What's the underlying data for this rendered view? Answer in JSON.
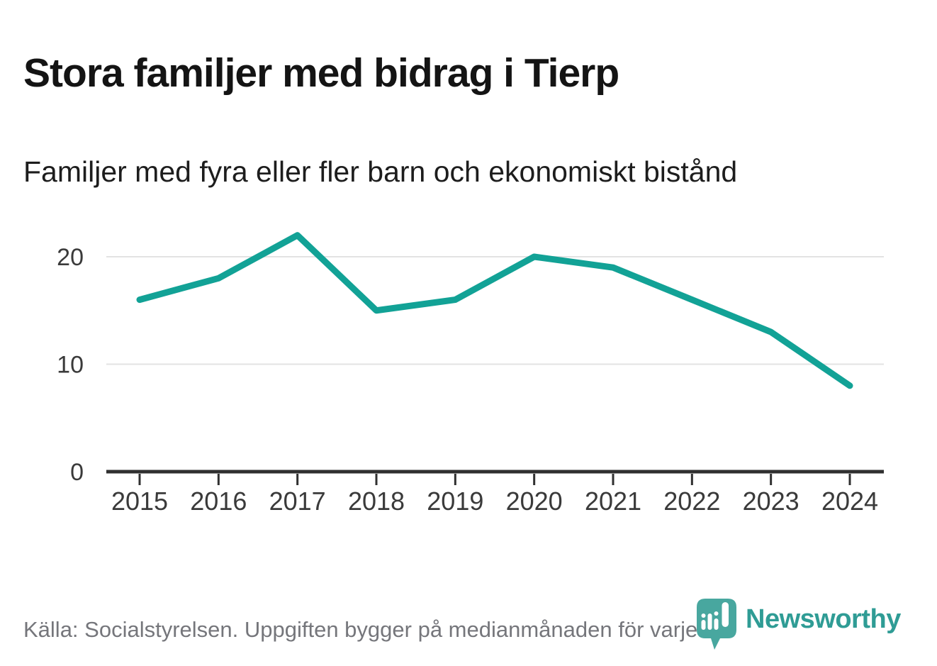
{
  "header": {
    "title": "Stora familjer med bidrag i Tierp",
    "subtitle": "Familjer med fyra eller fler barn och ekonomiskt bistånd"
  },
  "chart_data": {
    "type": "line",
    "categories": [
      "2015",
      "2016",
      "2017",
      "2018",
      "2019",
      "2020",
      "2021",
      "2022",
      "2023",
      "2024"
    ],
    "series": [
      {
        "name": "Familjer med fyra eller fler barn och ekonomiskt bistånd",
        "values": [
          16,
          18,
          22,
          15,
          16,
          20,
          19,
          16,
          13,
          8
        ]
      }
    ],
    "title": "Stora familjer med bidrag i Tierp",
    "xlabel": "",
    "ylabel": "",
    "ylim": [
      0,
      24
    ],
    "yticks": [
      0,
      10,
      20
    ],
    "grid": "horizontal-light",
    "legend": "none",
    "line_color": "#12a296"
  },
  "footer": {
    "source": "Källa: Socialstyrelsen. Uppgiften bygger på medianmånaden för varje år",
    "logo_text": "Newsworthy"
  },
  "icons": {
    "logo_icon": "newsworthy-speech-bubble-bar-chart"
  },
  "colors": {
    "accent": "#12a296",
    "logo_teal": "#2f9c95",
    "logo_icon_teal": "#48a79f",
    "grid": "#e3e3e3",
    "axis": "#303030",
    "title_text": "#141414",
    "gray_text": "#75767b"
  }
}
